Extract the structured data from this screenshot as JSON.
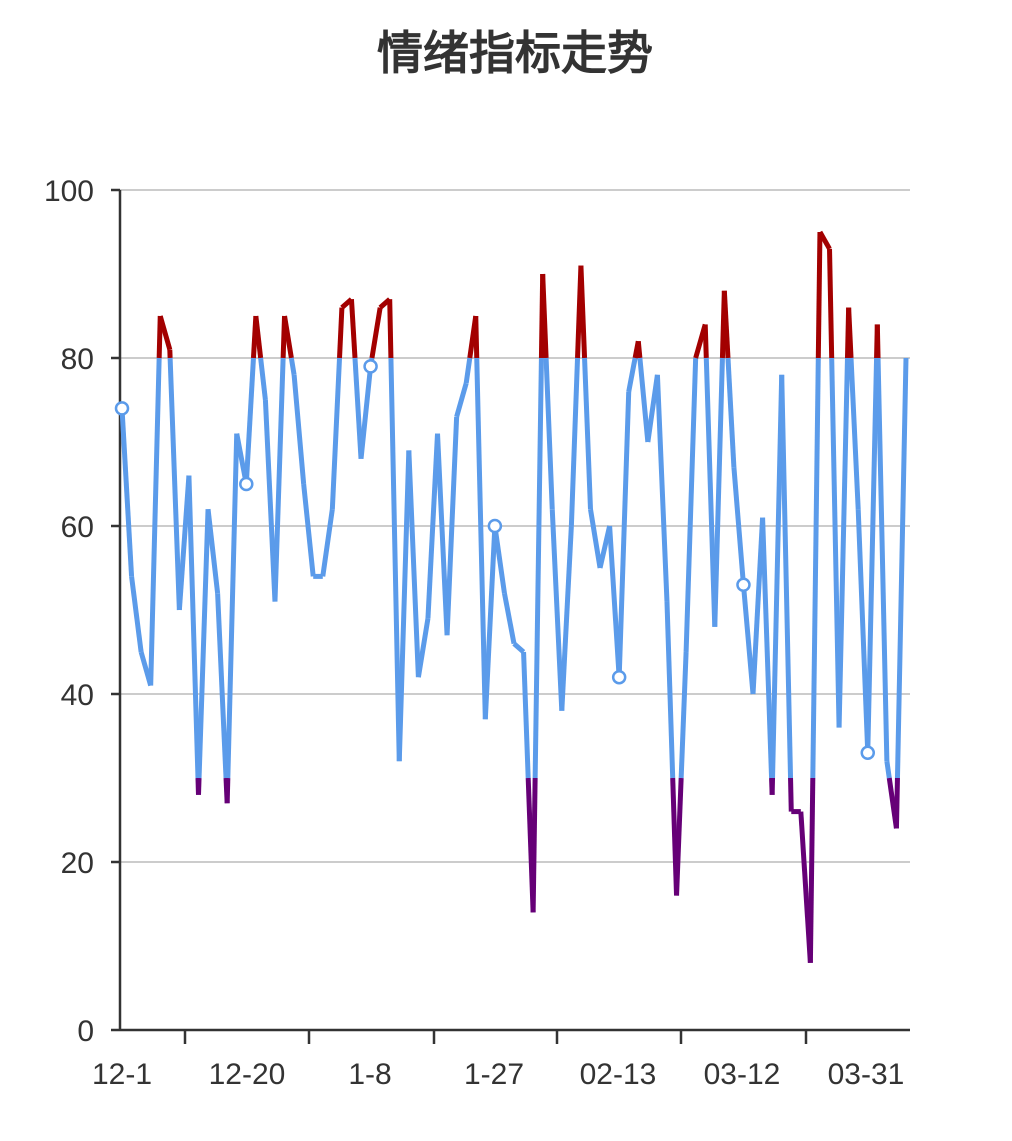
{
  "chart_data": {
    "type": "line",
    "title": "情绪指标走势",
    "xlabel": "",
    "ylabel": "",
    "ylim": [
      0,
      100
    ],
    "yticks": [
      0,
      20,
      40,
      60,
      80,
      100
    ],
    "grid": true,
    "thresholds": {
      "upper": 80,
      "lower": 30
    },
    "colors": {
      "normal": "#5b9bea",
      "above_upper": "#a30000",
      "below_lower": "#660077"
    },
    "x_tick_labels": [
      "12-1",
      "12-20",
      "1-8",
      "1-27",
      "02-13",
      "03-12",
      "03-31"
    ],
    "x_tick_indices": [
      0,
      7,
      20,
      33,
      46,
      59,
      72
    ],
    "series": [
      {
        "name": "情绪指标",
        "values": [
          74,
          54,
          45,
          41,
          85,
          81,
          50,
          66,
          28,
          62,
          52,
          27,
          71,
          65,
          85,
          75,
          51,
          85,
          78,
          65,
          54,
          54,
          62,
          86,
          87,
          68,
          79,
          86,
          87,
          32,
          69,
          42,
          49,
          71,
          47,
          73,
          77,
          85,
          37,
          60,
          52,
          46,
          45,
          14,
          90,
          62,
          38,
          60,
          91,
          62,
          55,
          60,
          42,
          76,
          82,
          70,
          78,
          51,
          16,
          45,
          80,
          84,
          48,
          88,
          67,
          53,
          40,
          61,
          28,
          78,
          26,
          26,
          8,
          95,
          93,
          36,
          86,
          62,
          33,
          84,
          32,
          24,
          80
        ],
        "marked_indices": [
          0,
          13,
          26,
          39,
          52,
          65,
          78
        ]
      }
    ]
  }
}
